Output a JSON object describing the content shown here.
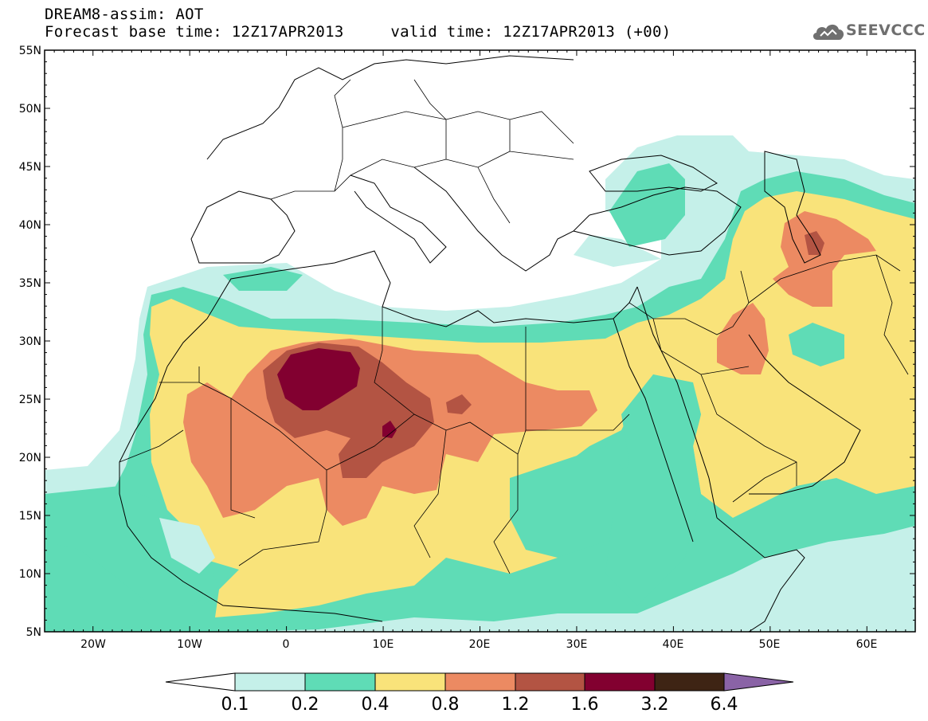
{
  "header": {
    "title": "DREAM8-assim: AOT",
    "subtitle": "Forecast base time: 12Z17APR2013     valid time: 12Z17APR2013 (+00)"
  },
  "logo": {
    "text": "SEEVCCC",
    "icon": "cloud-logo-icon"
  },
  "map": {
    "variable": "Aerosol optical thickness (AOT)",
    "lat_labels": [
      "55N",
      "50N",
      "45N",
      "40N",
      "35N",
      "30N",
      "25N",
      "20N",
      "15N",
      "10N",
      "5N"
    ],
    "lon_labels": [
      "20W",
      "10W",
      "0",
      "10E",
      "20E",
      "30E",
      "40E",
      "50E",
      "60E"
    ],
    "lat_range": [
      5,
      55
    ],
    "lon_range": [
      -25,
      65
    ],
    "grid": true
  },
  "colorbar": {
    "levels": [
      "0.1",
      "0.2",
      "0.4",
      "0.8",
      "1.2",
      "1.6",
      "3.2",
      "6.4"
    ],
    "colors": [
      "#ffffff",
      "#c5f0e9",
      "#5fdcb6",
      "#f9e37a",
      "#ec8a62",
      "#b35443",
      "#820030",
      "#3e2414",
      "#8a63a6"
    ]
  }
}
